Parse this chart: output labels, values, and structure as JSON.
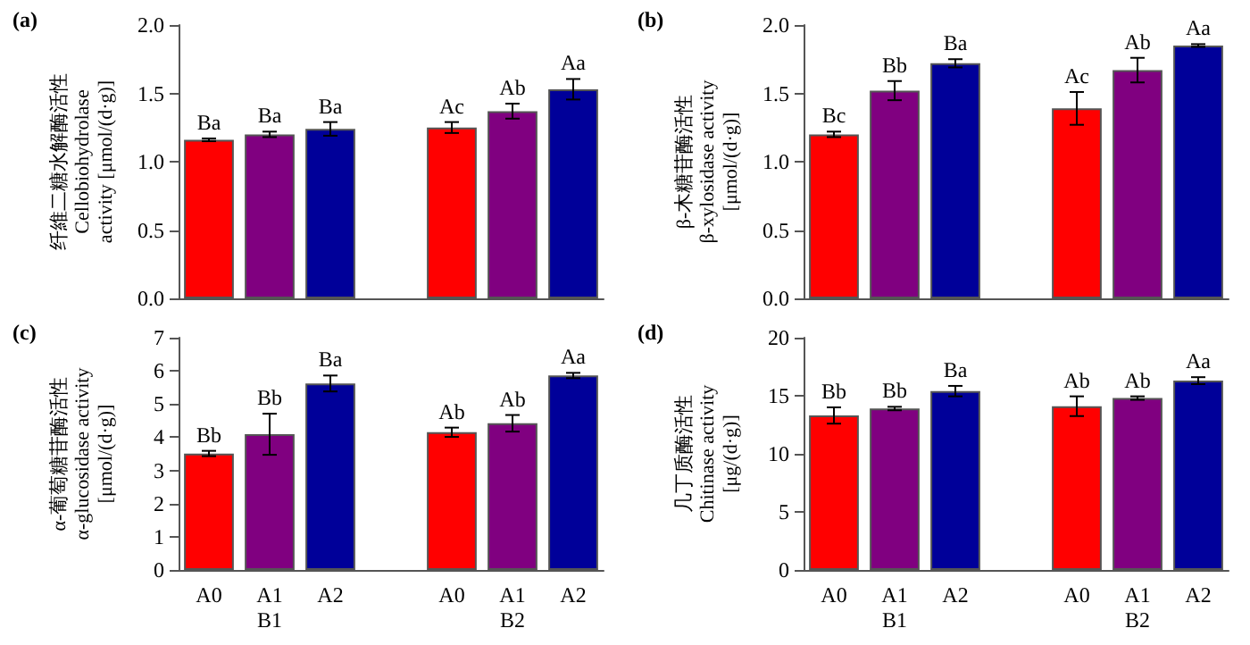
{
  "chart_data": [
    {
      "type": "bar",
      "title": "(a)",
      "ylabel": "纤維二糖水解酶活性\nCellobiohydrolase\nactivity [μmol/(d·g)]",
      "categories": [
        null,
        null,
        null,
        null,
        null,
        null,
        null
      ],
      "values": [
        1.16,
        1.2,
        1.24,
        null,
        1.25,
        1.37,
        1.53
      ],
      "errors": [
        0.01,
        0.02,
        0.05,
        null,
        0.04,
        0.055,
        0.075
      ],
      "colors": [
        "#ff0000",
        "#800080",
        "#000099",
        null,
        "#ff0000",
        "#800080",
        "#000099"
      ],
      "value_labels": [
        "Ba",
        "Ba",
        "Ba",
        null,
        "Ac",
        "Ab",
        "Aa"
      ],
      "ylim": [
        0,
        2
      ],
      "yticks": [
        {
          "value": 0,
          "label": "0.0"
        },
        {
          "value": 0.5,
          "label": "0.5"
        },
        {
          "value": 1,
          "label": "1.0"
        },
        {
          "value": 1.5,
          "label": "1.5"
        },
        {
          "value": 2,
          "label": "2.0"
        }
      ],
      "tick_labels": "y"
    },
    {
      "type": "bar",
      "title": "(b)",
      "ylabel": "β-木糖苷酶活性\nβ-xylosidase activity\n[μmol/(d·g)]",
      "categories": [
        null,
        null,
        null,
        null,
        null,
        null,
        null
      ],
      "values": [
        1.2,
        1.52,
        1.72,
        null,
        1.39,
        1.67,
        1.85
      ],
      "errors": [
        0.02,
        0.07,
        0.03,
        null,
        0.12,
        0.09,
        0.01
      ],
      "colors": [
        "#ff0000",
        "#800080",
        "#000099",
        null,
        "#ff0000",
        "#800080",
        "#000099"
      ],
      "value_labels": [
        "Bc",
        "Bb",
        "Ba",
        null,
        "Ac",
        "Ab",
        "Aa"
      ],
      "ylim": [
        0,
        2
      ],
      "yticks": [
        {
          "value": 0,
          "label": "0.0"
        },
        {
          "value": 0.5,
          "label": "0.5"
        },
        {
          "value": 1,
          "label": "1.0"
        },
        {
          "value": 1.5,
          "label": "1.5"
        },
        {
          "value": 2,
          "label": "2.0"
        }
      ],
      "tick_labels": "y"
    },
    {
      "type": "bar",
      "title": "(c)",
      "ylabel": "α-葡萄糖苷酶活性\nα-glucosidase activity\n[μmol/(d·g)]",
      "categories": [
        "A0",
        "A1",
        "A2",
        null,
        "A0",
        "A1",
        "A2"
      ],
      "values": [
        3.51,
        4.09,
        5.62,
        null,
        4.15,
        4.42,
        5.86
      ],
      "errors": [
        0.08,
        0.62,
        0.24,
        null,
        0.14,
        0.25,
        0.08
      ],
      "colors": [
        "#ff0000",
        "#800080",
        "#000099",
        null,
        "#ff0000",
        "#800080",
        "#000099"
      ],
      "value_labels": [
        "Bb",
        "Bb",
        "Ba",
        null,
        "Ab",
        "Ab",
        "Aa"
      ],
      "annotations": [
        "B1",
        "B2"
      ],
      "ylim": [
        0,
        7
      ],
      "yticks": [
        0,
        1,
        2,
        3,
        4,
        5,
        6,
        7
      ]
    },
    {
      "type": "bar",
      "title": "(d)",
      "ylabel": "几丁质酶活性\nChitinase activity\n[μg/(d·g)]",
      "categories": [
        "A0",
        "A1",
        "A2",
        null,
        "A0",
        "A1",
        "A2"
      ],
      "values": [
        13.3,
        13.9,
        15.4,
        null,
        14.1,
        14.8,
        16.3
      ],
      "errors": [
        0.7,
        0.15,
        0.45,
        null,
        0.85,
        0.15,
        0.3
      ],
      "colors": [
        "#ff0000",
        "#800080",
        "#000099",
        null,
        "#ff0000",
        "#800080",
        "#000099"
      ],
      "value_labels": [
        "Bb",
        "Bb",
        "Ba",
        null,
        "Ab",
        "Ab",
        "Aa"
      ],
      "annotations": [
        "B1",
        "B2"
      ],
      "ylim": [
        0,
        20
      ],
      "yticks": [
        0,
        5,
        10,
        15,
        20
      ]
    }
  ]
}
